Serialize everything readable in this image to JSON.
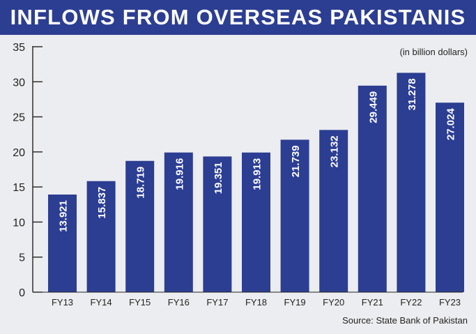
{
  "title": "INFLOWS FROM OVERSEAS PAKISTANIS",
  "unit_note": "(in billion dollars)",
  "source": "Source: State Bank of Pakistan",
  "colors": {
    "bar": "#2c3e92",
    "title_bg": "#2c3e92",
    "background": "#ecedf0",
    "axis": "#222222"
  },
  "chart_data": {
    "type": "bar",
    "categories": [
      "FY13",
      "FY14",
      "FY15",
      "FY16",
      "FY17",
      "FY18",
      "FY19",
      "FY20",
      "FY21",
      "FY22",
      "FY23"
    ],
    "values": [
      13.921,
      15.837,
      18.719,
      19.916,
      19.351,
      19.913,
      21.739,
      23.132,
      29.449,
      31.278,
      27.024
    ],
    "data_labels": [
      "13.921",
      "15.837",
      "18.719",
      "19.916",
      "19.351",
      "19.913",
      "21.739",
      "23.132",
      "29.449",
      "31.278",
      "27.024"
    ],
    "title": "INFLOWS FROM OVERSEAS PAKISTANIS",
    "xlabel": "",
    "ylabel": "",
    "ylim": [
      0,
      35
    ],
    "yticks": [
      0,
      5,
      10,
      15,
      20,
      25,
      30,
      35
    ],
    "grid": false,
    "legend": "none"
  }
}
